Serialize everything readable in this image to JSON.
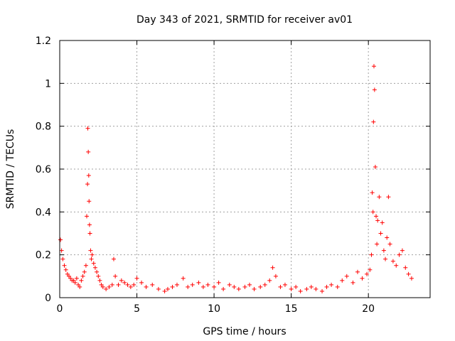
{
  "chart_data": {
    "type": "scatter",
    "title": "Day 343 of 2021, SRMTID for receiver av01",
    "xlabel": "GPS time / hours",
    "ylabel": "SRMTID / TECUs",
    "xlim": [
      0,
      24
    ],
    "ylim": [
      0,
      1.2
    ],
    "xticks": [
      0,
      5,
      10,
      15,
      20
    ],
    "xtick_labels": [
      "0",
      "5",
      "10",
      "15",
      "20"
    ],
    "yticks": [
      0,
      0.2,
      0.4,
      0.6,
      0.8,
      1,
      1.2
    ],
    "ytick_labels": [
      "0",
      "0.2",
      "0.4",
      "0.6",
      "0.8",
      "1",
      "1.2"
    ],
    "grid": true,
    "marker": "plus",
    "series_color": "#ff0000",
    "series": [
      {
        "name": "av01",
        "x": [
          0.05,
          0.12,
          0.2,
          0.3,
          0.4,
          0.5,
          0.6,
          0.7,
          0.8,
          0.9,
          1.0,
          1.1,
          1.2,
          1.3,
          1.4,
          1.5,
          1.6,
          1.7,
          1.75,
          1.8,
          1.82,
          1.85,
          1.88,
          1.9,
          1.93,
          1.96,
          2.0,
          2.05,
          2.1,
          2.2,
          2.3,
          2.4,
          2.5,
          2.6,
          2.7,
          2.8,
          3.0,
          3.2,
          3.4,
          3.5,
          3.6,
          3.8,
          4.0,
          4.2,
          4.4,
          4.6,
          4.8,
          5.0,
          5.3,
          5.6,
          6.0,
          6.4,
          6.8,
          7.0,
          7.3,
          7.6,
          8.0,
          8.3,
          8.6,
          9.0,
          9.3,
          9.6,
          10.0,
          10.3,
          10.6,
          11.0,
          11.3,
          11.6,
          12.0,
          12.3,
          12.6,
          13.0,
          13.3,
          13.6,
          13.8,
          14.0,
          14.3,
          14.6,
          15.0,
          15.3,
          15.6,
          16.0,
          16.3,
          16.6,
          17.0,
          17.3,
          17.6,
          18.0,
          18.3,
          18.6,
          19.0,
          19.3,
          19.6,
          19.9,
          20.1,
          20.2,
          20.25,
          20.3,
          20.33,
          20.36,
          20.4,
          20.45,
          20.5,
          20.55,
          20.6,
          20.7,
          20.8,
          20.9,
          21.0,
          21.1,
          21.2,
          21.3,
          21.4,
          21.6,
          21.8,
          22.0,
          22.2,
          22.4,
          22.6,
          22.8
        ],
        "y": [
          0.27,
          0.22,
          0.18,
          0.15,
          0.13,
          0.11,
          0.1,
          0.09,
          0.08,
          0.08,
          0.07,
          0.09,
          0.06,
          0.05,
          0.08,
          0.1,
          0.12,
          0.15,
          0.38,
          0.53,
          0.79,
          0.68,
          0.57,
          0.45,
          0.34,
          0.3,
          0.22,
          0.18,
          0.2,
          0.16,
          0.14,
          0.12,
          0.1,
          0.08,
          0.06,
          0.05,
          0.04,
          0.05,
          0.06,
          0.18,
          0.1,
          0.06,
          0.08,
          0.07,
          0.06,
          0.05,
          0.06,
          0.09,
          0.07,
          0.05,
          0.06,
          0.04,
          0.03,
          0.04,
          0.05,
          0.06,
          0.09,
          0.05,
          0.06,
          0.07,
          0.05,
          0.06,
          0.05,
          0.07,
          0.04,
          0.06,
          0.05,
          0.04,
          0.05,
          0.06,
          0.04,
          0.05,
          0.06,
          0.08,
          0.14,
          0.1,
          0.05,
          0.06,
          0.04,
          0.05,
          0.03,
          0.04,
          0.05,
          0.04,
          0.03,
          0.05,
          0.06,
          0.05,
          0.08,
          0.1,
          0.07,
          0.12,
          0.09,
          0.11,
          0.13,
          0.2,
          0.49,
          0.4,
          0.82,
          1.08,
          0.97,
          0.61,
          0.38,
          0.25,
          0.36,
          0.47,
          0.3,
          0.35,
          0.22,
          0.18,
          0.28,
          0.47,
          0.25,
          0.17,
          0.15,
          0.2,
          0.22,
          0.14,
          0.11,
          0.09
        ]
      }
    ]
  }
}
